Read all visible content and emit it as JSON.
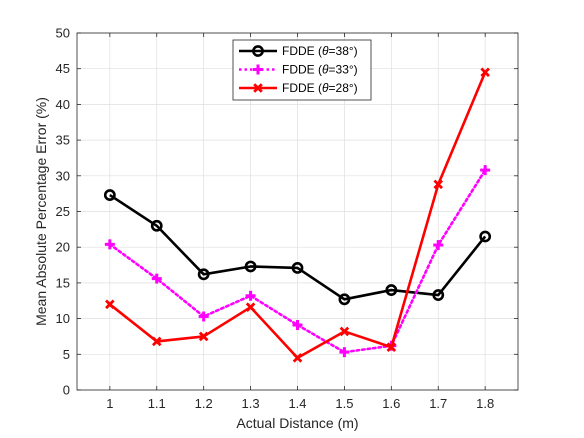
{
  "chart_data": {
    "type": "line",
    "x": [
      1,
      1.1,
      1.2,
      1.3,
      1.4,
      1.5,
      1.6,
      1.7,
      1.8
    ],
    "x_tick_labels": [
      "1",
      "1.1",
      "1.2",
      "1.3",
      "1.4",
      "1.5",
      "1.6",
      "1.7",
      "1.8"
    ],
    "y_tick_labels": [
      "0",
      "5",
      "10",
      "15",
      "20",
      "25",
      "30",
      "35",
      "40",
      "45",
      "50"
    ],
    "xlim": [
      0.93,
      1.87
    ],
    "ylim": [
      0,
      50
    ],
    "xlabel": "Actual Distance (m)",
    "ylabel": "Mean Absolute Percentage Error (%)",
    "grid": true,
    "legend_position": "top-center",
    "series": [
      {
        "name": "FDDE (θ=38°)",
        "legend_prefix": "FDDE (",
        "legend_symbol": "θ",
        "legend_suffix": "=38°)",
        "color": "#000000",
        "line_style": "solid",
        "marker": "circle",
        "values": [
          27.3,
          23.0,
          16.2,
          17.3,
          17.1,
          12.7,
          14.0,
          13.3,
          21.5
        ]
      },
      {
        "name": "FDDE (θ=33°)",
        "legend_prefix": "FDDE (",
        "legend_symbol": "θ",
        "legend_suffix": "=33°)",
        "color": "#ff00ff",
        "line_style": "dotted",
        "marker": "plus",
        "values": [
          20.4,
          15.6,
          10.3,
          13.2,
          9.1,
          5.3,
          6.2,
          20.3,
          30.8
        ]
      },
      {
        "name": "FDDE (θ=28°)",
        "legend_prefix": "FDDE (",
        "legend_symbol": "θ",
        "legend_suffix": "=28°)",
        "color": "#ff0000",
        "line_style": "solid",
        "marker": "x",
        "values": [
          12.0,
          6.8,
          7.5,
          11.6,
          4.5,
          8.2,
          6.0,
          28.8,
          44.5
        ]
      }
    ]
  }
}
